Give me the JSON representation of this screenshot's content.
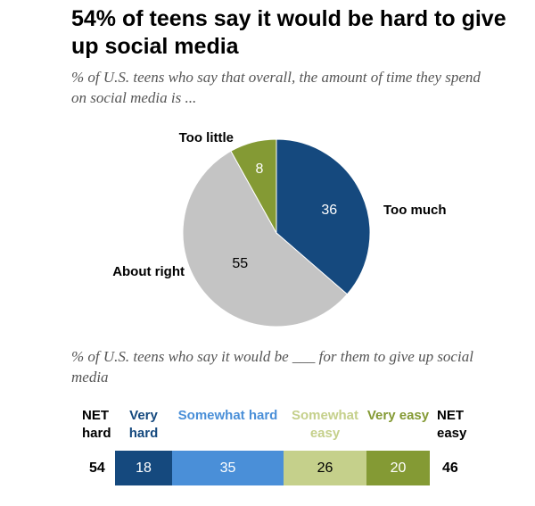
{
  "title": "54% of teens say it would be hard to give up social media",
  "subtitle_pie": "% of U.S. teens who say that overall, the amount of time they spend on social media is ...",
  "subtitle_bar": "% of U.S. teens who say it would be ___ for them to give up social media",
  "colors": {
    "dark_blue": "#15497e",
    "light_blue": "#4a8fd8",
    "light_green": "#c5d08b",
    "olive": "#849a34",
    "gray": "#c4c4c4"
  },
  "chart_data": [
    {
      "type": "pie",
      "slices": [
        {
          "label": "Too much",
          "value": 36,
          "color": "#15497e",
          "text_color": "#ffffff"
        },
        {
          "label": "About right",
          "value": 55,
          "color": "#c4c4c4",
          "text_color": "#000000"
        },
        {
          "label": "Too little",
          "value": 8,
          "color": "#849a34",
          "text_color": "#ffffff"
        }
      ]
    },
    {
      "type": "bar",
      "orientation": "horizontal-stacked",
      "categories": [
        "Very hard",
        "Somewhat hard",
        "Somewhat easy",
        "Very easy"
      ],
      "values": [
        18,
        35,
        26,
        20
      ],
      "colors": [
        "#15497e",
        "#4a8fd8",
        "#c5d08b",
        "#849a34"
      ],
      "label_colors": [
        "#15497e",
        "#4a8fd8",
        "#c5d08b",
        "#849a34"
      ],
      "value_text_colors": [
        "#ffffff",
        "#ffffff",
        "#000000",
        "#ffffff"
      ],
      "net": {
        "left_label": "NET hard",
        "left_value": 54,
        "right_label": "NET easy",
        "right_value": 46
      }
    }
  ]
}
